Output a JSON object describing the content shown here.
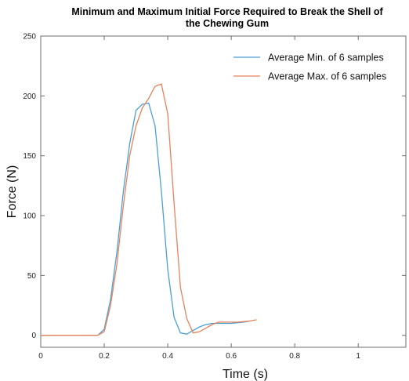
{
  "chart_data": {
    "type": "line",
    "title_line1": "Minimum  and Maximum Initial  Force Required to Break the Shell of",
    "title_line2": "the Chewing Gum",
    "xlabel": "Time (s)",
    "ylabel": "Force (N)",
    "xlim": [
      0,
      1.15
    ],
    "ylim": [
      -10,
      250
    ],
    "xticks": [
      0,
      0.2,
      0.4,
      0.6,
      0.8,
      1
    ],
    "xtick_labels": [
      "0",
      "0.2",
      "0.4",
      "0.6",
      "0.8",
      "1"
    ],
    "yticks": [
      0,
      50,
      100,
      150,
      200,
      250
    ],
    "ytick_labels": [
      "0",
      "50",
      "100",
      "150",
      "200",
      "250"
    ],
    "grid": false,
    "legend_position": "top-right",
    "series": [
      {
        "name": "Average Min. of 6 samples",
        "color": "#4a9fd6",
        "x": [
          0,
          0.18,
          0.2,
          0.22,
          0.24,
          0.26,
          0.28,
          0.3,
          0.32,
          0.34,
          0.36,
          0.38,
          0.4,
          0.42,
          0.44,
          0.46,
          0.48,
          0.5,
          0.52,
          0.54,
          0.56,
          0.58,
          0.6,
          0.62,
          0.64,
          0.66
        ],
        "y": [
          0,
          0,
          5,
          30,
          70,
          120,
          160,
          188,
          193,
          194,
          175,
          120,
          55,
          15,
          2,
          1,
          4,
          7,
          9,
          10,
          10,
          10,
          10,
          10.5,
          11,
          12
        ]
      },
      {
        "name": "Average Max. of 6 samples",
        "color": "#e8825a",
        "x": [
          0,
          0.18,
          0.2,
          0.22,
          0.24,
          0.26,
          0.28,
          0.3,
          0.32,
          0.34,
          0.36,
          0.38,
          0.4,
          0.42,
          0.44,
          0.46,
          0.48,
          0.5,
          0.52,
          0.54,
          0.56,
          0.58,
          0.6,
          0.62,
          0.64,
          0.66,
          0.68
        ],
        "y": [
          0,
          0,
          3,
          25,
          60,
          108,
          150,
          175,
          190,
          198,
          208,
          210,
          185,
          110,
          40,
          14,
          2,
          3,
          6,
          9,
          11,
          11,
          11,
          11,
          11.5,
          12,
          13
        ]
      }
    ]
  }
}
